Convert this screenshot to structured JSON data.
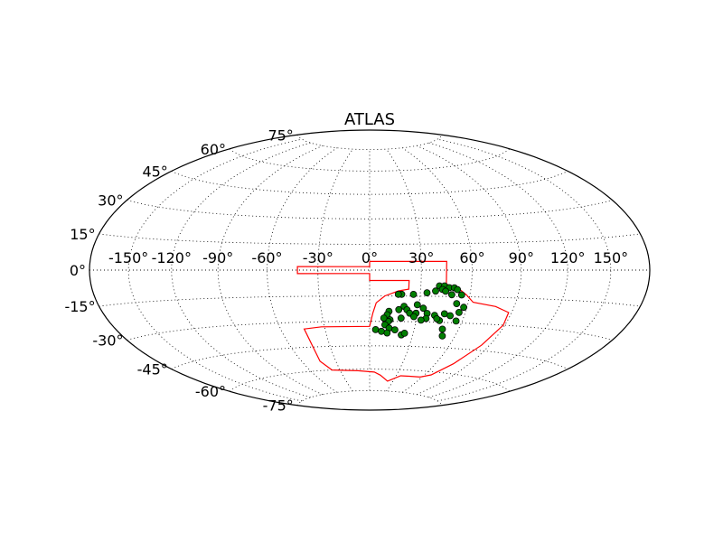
{
  "chart_data": {
    "type": "scatter",
    "projection": "hammer",
    "title": "ATLAS",
    "grid": true,
    "lon_ticks": [
      "-150°",
      "-120°",
      "-90°",
      "-60°",
      "-30°",
      "0°",
      "30°",
      "60°",
      "90°",
      "120°",
      "150°"
    ],
    "lon_values": [
      -150,
      -120,
      -90,
      -60,
      -30,
      0,
      30,
      60,
      90,
      120,
      150
    ],
    "lat_ticks": [
      "75°",
      "60°",
      "45°",
      "30°",
      "15°",
      "0°",
      "-15°",
      "-30°",
      "-45°",
      "-60°",
      "-75°"
    ],
    "lat_values": [
      75,
      60,
      45,
      30,
      15,
      0,
      -15,
      -30,
      -45,
      -60,
      -75
    ],
    "colors": {
      "footprint": "#ff0000",
      "points": "#007f00",
      "point_edge": "#000000",
      "grid": "#000000",
      "frame": "#000000"
    },
    "footprint": [
      [
        0,
        5
      ],
      [
        45,
        5
      ],
      [
        45,
        -8
      ],
      [
        52,
        -10
      ],
      [
        58,
        -14
      ],
      [
        63,
        -18
      ],
      [
        78,
        -20
      ],
      [
        88,
        -23
      ],
      [
        89,
        -30
      ],
      [
        84,
        -42
      ],
      [
        76,
        -54
      ],
      [
        67,
        -62
      ],
      [
        58,
        -64
      ],
      [
        45,
        -64
      ],
      [
        35,
        -64
      ],
      [
        23,
        -68
      ],
      [
        12,
        -64
      ],
      [
        5,
        -62
      ],
      [
        -12,
        -61
      ],
      [
        -38,
        -60
      ],
      [
        -44,
        -54
      ],
      [
        -44,
        -34
      ],
      [
        -32,
        -33
      ],
      [
        0,
        -33
      ],
      [
        2,
        -25
      ],
      [
        4,
        -19
      ],
      [
        9,
        -15
      ],
      [
        17,
        -12
      ],
      [
        23,
        -11
      ],
      [
        23,
        -6
      ],
      [
        0,
        -6
      ],
      [
        0,
        -2
      ],
      [
        -42,
        -2
      ],
      [
        -42,
        2
      ],
      [
        0,
        2
      ],
      [
        0,
        5
      ]
    ],
    "points": [
      [
        41,
        -9
      ],
      [
        44,
        -9
      ],
      [
        47,
        -10
      ],
      [
        50,
        -10
      ],
      [
        52,
        -11
      ],
      [
        43,
        -11
      ],
      [
        45,
        -12
      ],
      [
        55,
        -14
      ],
      [
        49,
        -14
      ],
      [
        39,
        -12
      ],
      [
        34,
        -13
      ],
      [
        26,
        -14
      ],
      [
        19,
        -14
      ],
      [
        17,
        -14
      ],
      [
        53,
        -19
      ],
      [
        58,
        -21
      ],
      [
        56,
        -24
      ],
      [
        29,
        -20
      ],
      [
        47,
        -25
      ],
      [
        51,
        -26
      ],
      [
        56,
        -29
      ],
      [
        45,
        -29
      ],
      [
        33,
        -22
      ],
      [
        21,
        -21
      ],
      [
        18,
        -23
      ],
      [
        12,
        -24
      ],
      [
        11,
        -26
      ],
      [
        23,
        -23
      ],
      [
        25,
        -25
      ],
      [
        29,
        -25
      ],
      [
        36,
        -25
      ],
      [
        41,
        -26
      ],
      [
        43,
        -28
      ],
      [
        36,
        -28
      ],
      [
        33,
        -29
      ],
      [
        28,
        -27
      ],
      [
        20,
        -28
      ],
      [
        13,
        -29
      ],
      [
        12,
        -30
      ],
      [
        9,
        -28
      ],
      [
        10,
        -32
      ],
      [
        13,
        -34
      ],
      [
        17,
        -35
      ],
      [
        22,
        -38
      ],
      [
        24,
        -37
      ],
      [
        4,
        -35
      ],
      [
        8,
        -36
      ],
      [
        12,
        -37
      ],
      [
        49,
        -34
      ],
      [
        51,
        -38
      ]
    ]
  }
}
